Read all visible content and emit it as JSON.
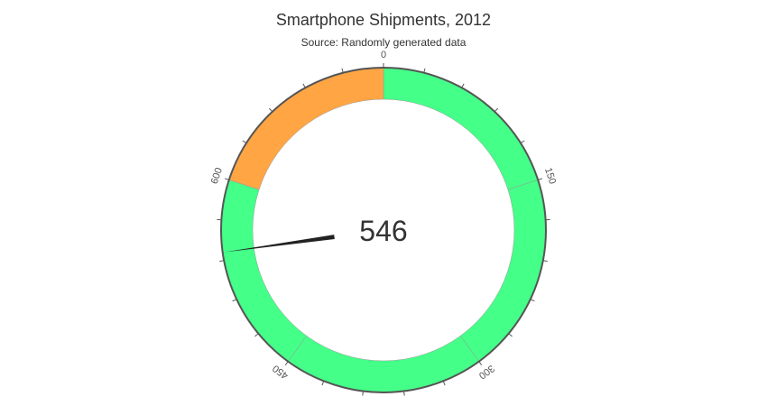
{
  "chart_data": {
    "type": "gauge",
    "title": "Smartphone Shipments, 2012",
    "subtitle": "Source: Randomly generated data",
    "min": 0,
    "max": 750,
    "value": 546,
    "value_label": "546",
    "ticks": [
      {
        "value": 0,
        "label": "0"
      },
      {
        "value": 150,
        "label": "150"
      },
      {
        "value": 300,
        "label": "300"
      },
      {
        "value": 450,
        "label": "450"
      },
      {
        "value": 600,
        "label": "600"
      }
    ],
    "bands": [
      {
        "from": 0,
        "to": 150,
        "color": "#44FF88"
      },
      {
        "from": 150,
        "to": 300,
        "color": "#44FF88"
      },
      {
        "from": 300,
        "to": 450,
        "color": "#44FF88"
      },
      {
        "from": 450,
        "to": 600,
        "color": "#44FF88"
      },
      {
        "from": 600,
        "to": 750,
        "color": "#FFA544"
      }
    ],
    "colors": {
      "green_band": "#44FF88",
      "orange_band": "#FFA544",
      "axis": "#555555",
      "needle": "#222222"
    }
  }
}
